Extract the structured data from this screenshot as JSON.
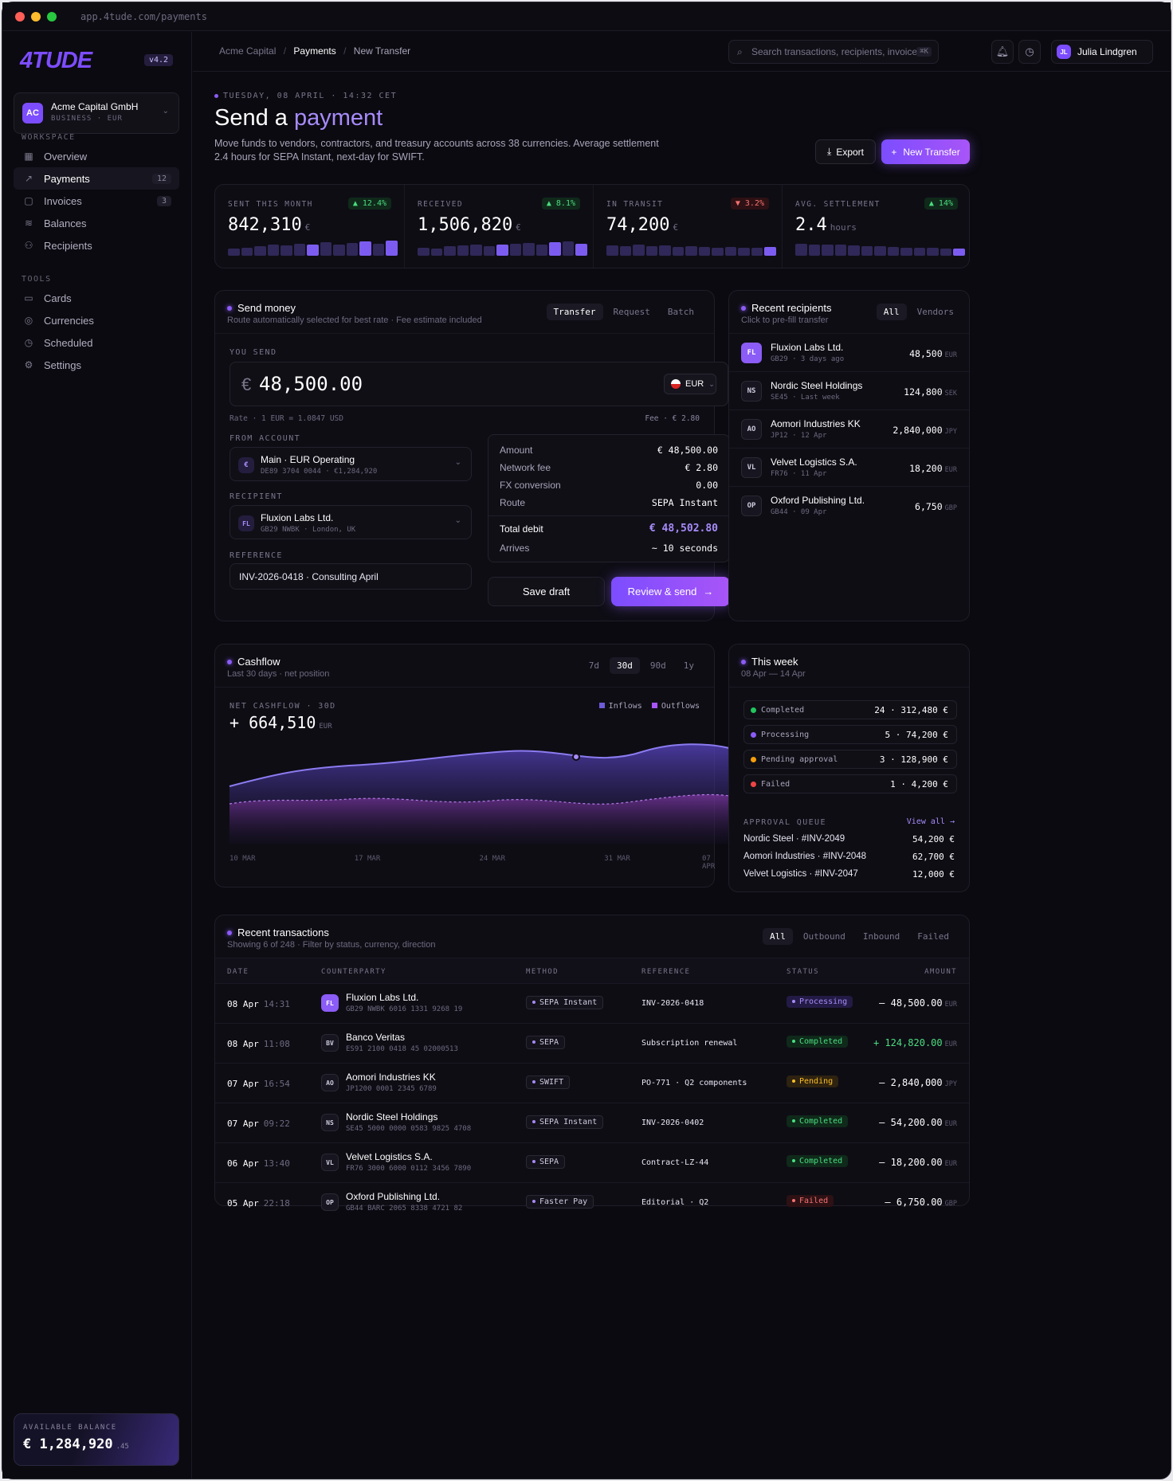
{
  "window": {
    "url": "app.4tude.com/payments"
  },
  "sidebar": {
    "logo": "4TUDE",
    "version": "v4.2",
    "org": {
      "initials": "AC",
      "name": "Acme Capital GmbH",
      "meta": "BUSINESS · EUR"
    },
    "workspace_label": "WORKSPACE",
    "workspace": [
      {
        "label": "Overview",
        "icon": "grid-icon",
        "count": ""
      },
      {
        "label": "Payments",
        "icon": "trend-icon",
        "count": "12"
      },
      {
        "label": "Invoices",
        "icon": "document-icon",
        "count": "3"
      },
      {
        "label": "Balances",
        "icon": "layers-icon",
        "count": ""
      },
      {
        "label": "Recipients",
        "icon": "users-icon",
        "count": ""
      }
    ],
    "tools_label": "TOOLS",
    "tools": [
      {
        "label": "Cards",
        "icon": "card-icon"
      },
      {
        "label": "Currencies",
        "icon": "currency-icon"
      },
      {
        "label": "Scheduled",
        "icon": "clock-icon"
      },
      {
        "label": "Settings",
        "icon": "gear-icon"
      }
    ],
    "balance": {
      "label": "AVAILABLE BALANCE",
      "amount": "€ 1,284,920",
      "cents": ".45"
    }
  },
  "topbar": {
    "crumbs": [
      "Acme Capital",
      "Payments",
      "New Transfer"
    ],
    "search_placeholder": "Search transactions, recipients, invoices...",
    "search_shortcut": "⌘K",
    "user": {
      "initials": "JL",
      "name": "Julia Lindgren"
    }
  },
  "hero": {
    "date": "TUESDAY, 08 APRIL · 14:32 CET",
    "title_a": "Send a",
    "title_b": "payment",
    "desc1": "Move funds to vendors, contractors, and treasury accounts across 38 currencies. Average settlement",
    "desc2": "2.4 hours for SEPA Instant, next-day for SWIFT.",
    "export": "Export",
    "new_transfer": "New Transfer"
  },
  "stats": [
    {
      "label": "SENT THIS MONTH",
      "value": "842,310",
      "unit": "€",
      "delta": "▲ 12.4%",
      "up": true,
      "bars": [
        0.3,
        0.4,
        0.5,
        0.6,
        0.55,
        0.7,
        0.65,
        0.8,
        0.6,
        0.75,
        0.85,
        0.7,
        0.95
      ]
    },
    {
      "label": "RECEIVED",
      "value": "1,506,820",
      "unit": "€",
      "delta": "▲ 8.1%",
      "up": true,
      "bars": [
        0.35,
        0.3,
        0.5,
        0.55,
        0.6,
        0.5,
        0.65,
        0.7,
        0.75,
        0.65,
        0.8,
        0.9,
        0.7
      ]
    },
    {
      "label": "IN TRANSIT",
      "value": "74,200",
      "unit": "€",
      "delta": "▼ 3.2%",
      "up": false,
      "bars": [
        0.55,
        0.5,
        0.6,
        0.5,
        0.55,
        0.45,
        0.5,
        0.45,
        0.4,
        0.45,
        0.4,
        0.35,
        0.45
      ]
    },
    {
      "label": "AVG. SETTLEMENT",
      "value": "2.4",
      "unit": "hours",
      "delta": "▲ 14%",
      "up": true,
      "bars": [
        0.7,
        0.65,
        0.6,
        0.6,
        0.55,
        0.5,
        0.5,
        0.45,
        0.4,
        0.4,
        0.35,
        0.3,
        0.3
      ]
    }
  ],
  "send": {
    "title": "Send money",
    "sub": "Route automatically selected for best rate · Fee estimate included",
    "tabs": [
      "Transfer",
      "Request",
      "Batch"
    ],
    "you_send": "YOU SEND",
    "currency_symbol": "€",
    "amount": "48,500.00",
    "currency": "EUR",
    "rate": "Rate · 1 EUR = 1.0847 USD",
    "fee": "Fee · € 2.80",
    "from_label": "FROM ACCOUNT",
    "from_name": "Main · EUR Operating",
    "from_meta": "DE89 3704 0044 · €1,284,920",
    "from_icon": "€",
    "recipient_label": "RECIPIENT",
    "recipient_name": "Fluxion Labs Ltd.",
    "recipient_meta": "GB29 NWBK · London, UK",
    "recipient_initials": "FL",
    "reference_label": "REFERENCE",
    "reference": "INV-2026-0418 · Consulting April",
    "summary": [
      {
        "k": "Amount",
        "v": "€ 48,500.00"
      },
      {
        "k": "Network fee",
        "v": "€ 2.80"
      },
      {
        "k": "FX conversion",
        "v": "0.00"
      },
      {
        "k": "Route",
        "v": "SEPA Instant"
      }
    ],
    "total_label": "Total debit",
    "total": "€ 48,502.80",
    "arrives_label": "Arrives",
    "arrives": "~ 10 seconds",
    "save": "Save draft",
    "review": "Review & send"
  },
  "recipients": {
    "title": "Recent recipients",
    "sub": "Click to pre-fill transfer",
    "tabs": [
      "All",
      "Vendors"
    ],
    "items": [
      {
        "initials": "FL",
        "name": "Fluxion Labs Ltd.",
        "meta": "GB29 · 3 days ago",
        "amount": "48,500",
        "cur": "EUR",
        "accent": true
      },
      {
        "initials": "NS",
        "name": "Nordic Steel Holdings",
        "meta": "SE45 · Last week",
        "amount": "124,800",
        "cur": "SEK",
        "accent": false
      },
      {
        "initials": "AO",
        "name": "Aomori Industries KK",
        "meta": "JP12 · 12 Apr",
        "amount": "2,840,000",
        "cur": "JPY",
        "accent": false
      },
      {
        "initials": "VL",
        "name": "Velvet Logistics S.A.",
        "meta": "FR76 · 11 Apr",
        "amount": "18,200",
        "cur": "EUR",
        "accent": false
      },
      {
        "initials": "OP",
        "name": "Oxford Publishing Ltd.",
        "meta": "GB44 · 09 Apr",
        "amount": "6,750",
        "cur": "GBP",
        "accent": false
      }
    ]
  },
  "cashflow": {
    "title": "Cashflow",
    "sub": "Last 30 days · net position",
    "tabs": [
      "7d",
      "30d",
      "90d",
      "1y"
    ],
    "label": "NET CASHFLOW · 30D",
    "value": "+ 664,510",
    "unit": "EUR",
    "legend": [
      "Inflows",
      "Outflows"
    ],
    "xticks": [
      "10 MAR",
      "17 MAR",
      "24 MAR",
      "31 MAR",
      "07 APR"
    ]
  },
  "week": {
    "title": "This week",
    "sub": "08 Apr — 14 Apr",
    "statuses": [
      {
        "label": "Completed",
        "value": "24 · 312,480 €",
        "color": "#22c55e"
      },
      {
        "label": "Processing",
        "value": "5 · 74,200 €",
        "color": "#8b5cf6"
      },
      {
        "label": "Pending approval",
        "value": "3 · 128,900 €",
        "color": "#f59e0b"
      },
      {
        "label": "Failed",
        "value": "1 · 4,200 €",
        "color": "#ef4444"
      }
    ],
    "queue_label": "APPROVAL QUEUE",
    "view_all": "View all →",
    "queue": [
      {
        "name": "Nordic Steel · #INV-2049",
        "amount": "54,200 €"
      },
      {
        "name": "Aomori Industries · #INV-2048",
        "amount": "62,700 €"
      },
      {
        "name": "Velvet Logistics · #INV-2047",
        "amount": "12,000 €"
      }
    ]
  },
  "transactions": {
    "title": "Recent transactions",
    "sub": "Showing 6 of 248 · Filter by status, currency, direction",
    "tabs": [
      "All",
      "Outbound",
      "Inbound",
      "Failed"
    ],
    "headers": [
      "DATE",
      "COUNTERPARTY",
      "METHOD",
      "REFERENCE",
      "STATUS",
      "AMOUNT"
    ],
    "rows": [
      {
        "date": "08 Apr",
        "time": "14:31",
        "initials": "FL",
        "name": "Fluxion Labs Ltd.",
        "iban": "GB29 NWBK 6016 1331 9268 19",
        "method": "SEPA Instant",
        "ref": "INV-2026-0418",
        "status": "Processing",
        "amount": "– 48,500.00",
        "cur": "EUR",
        "accent": true
      },
      {
        "date": "08 Apr",
        "time": "11:08",
        "initials": "BV",
        "name": "Banco Veritas",
        "iban": "ES91 2100 0418 45 02000513",
        "method": "SEPA",
        "ref": "Subscription renewal",
        "status": "Completed",
        "amount": "+ 124,820.00",
        "cur": "EUR",
        "accent": false
      },
      {
        "date": "07 Apr",
        "time": "16:54",
        "initials": "AO",
        "name": "Aomori Industries KK",
        "iban": "JP1200 0001 2345 6789",
        "method": "SWIFT",
        "ref": "PO-771 · Q2 components",
        "status": "Pending",
        "amount": "– 2,840,000",
        "cur": "JPY",
        "accent": false
      },
      {
        "date": "07 Apr",
        "time": "09:22",
        "initials": "NS",
        "name": "Nordic Steel Holdings",
        "iban": "SE45 5000 0000 0583 9825 4708",
        "method": "SEPA Instant",
        "ref": "INV-2026-0402",
        "status": "Completed",
        "amount": "– 54,200.00",
        "cur": "EUR",
        "accent": false
      },
      {
        "date": "06 Apr",
        "time": "13:40",
        "initials": "VL",
        "name": "Velvet Logistics S.A.",
        "iban": "FR76 3000 6000 0112 3456 7890",
        "method": "SEPA",
        "ref": "Contract-LZ-44",
        "status": "Completed",
        "amount": "– 18,200.00",
        "cur": "EUR",
        "accent": false
      },
      {
        "date": "05 Apr",
        "time": "22:18",
        "initials": "OP",
        "name": "Oxford Publishing Ltd.",
        "iban": "GB44 BARC 2065 8338 4721 82",
        "method": "Faster Pay",
        "ref": "Editorial · Q2",
        "status": "Failed",
        "amount": "– 6,750.00",
        "cur": "GBP",
        "accent": false
      }
    ]
  }
}
